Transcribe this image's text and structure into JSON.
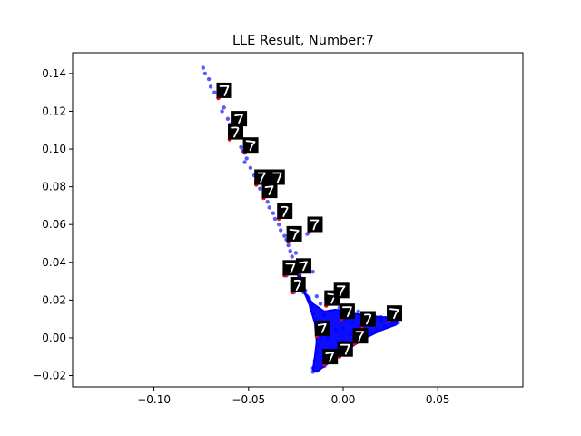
{
  "chart_data": {
    "type": "scatter",
    "title": "LLE Result, Number:7",
    "xlabel": "",
    "ylabel": "",
    "xlim": [
      -0.143,
      0.095
    ],
    "ylim": [
      -0.026,
      0.151
    ],
    "xticks": [
      -0.1,
      -0.05,
      0.0,
      0.05
    ],
    "xtick_labels": [
      "−0.10",
      "−0.05",
      "0.00",
      "0.05"
    ],
    "yticks": [
      -0.02,
      0.0,
      0.02,
      0.04,
      0.06,
      0.08,
      0.1,
      0.12,
      0.14
    ],
    "ytick_labels": [
      "−0.02",
      "0.00",
      "0.02",
      "0.04",
      "0.06",
      "0.08",
      "0.10",
      "0.12",
      "0.14"
    ],
    "grid": false,
    "point_color": "#0000ff",
    "highlight_color": "#ff0000",
    "points": [
      [
        -0.074,
        0.143
      ],
      [
        -0.073,
        0.14
      ],
      [
        -0.071,
        0.137
      ],
      [
        -0.07,
        0.133
      ],
      [
        -0.068,
        0.13
      ],
      [
        -0.066,
        0.127
      ],
      [
        -0.063,
        0.122
      ],
      [
        -0.064,
        0.12
      ],
      [
        -0.061,
        0.116
      ],
      [
        -0.06,
        0.113
      ],
      [
        -0.058,
        0.109
      ],
      [
        -0.057,
        0.107
      ],
      [
        -0.054,
        0.101
      ],
      [
        -0.053,
        0.099
      ],
      [
        -0.051,
        0.095
      ],
      [
        -0.052,
        0.093
      ],
      [
        -0.049,
        0.09
      ],
      [
        -0.047,
        0.086
      ],
      [
        -0.046,
        0.083
      ],
      [
        -0.044,
        0.079
      ],
      [
        -0.042,
        0.076
      ],
      [
        -0.04,
        0.072
      ],
      [
        -0.039,
        0.069
      ],
      [
        -0.037,
        0.066
      ],
      [
        -0.036,
        0.063
      ],
      [
        -0.034,
        0.06
      ],
      [
        -0.033,
        0.057
      ],
      [
        -0.031,
        0.054
      ],
      [
        -0.03,
        0.052
      ],
      [
        -0.029,
        0.049
      ],
      [
        -0.028,
        0.046
      ],
      [
        -0.027,
        0.043
      ],
      [
        -0.026,
        0.04
      ],
      [
        -0.025,
        0.038
      ],
      [
        -0.024,
        0.036
      ],
      [
        -0.023,
        0.033
      ],
      [
        -0.022,
        0.03
      ],
      [
        -0.021,
        0.028
      ],
      [
        -0.02,
        0.025
      ],
      [
        -0.019,
        0.022
      ],
      [
        -0.018,
        0.019
      ],
      [
        -0.017,
        0.016
      ],
      [
        -0.016,
        0.013
      ],
      [
        -0.015,
        0.01
      ],
      [
        -0.014,
        0.006
      ],
      [
        -0.013,
        0.003
      ],
      [
        -0.012,
        0.0
      ],
      [
        -0.013,
        -0.004
      ],
      [
        -0.014,
        -0.008
      ],
      [
        -0.015,
        -0.012
      ],
      [
        -0.016,
        -0.016
      ],
      [
        -0.016,
        -0.018
      ],
      [
        -0.018,
        0.06
      ],
      [
        -0.019,
        0.055
      ],
      [
        -0.025,
        0.045
      ],
      [
        -0.022,
        0.041
      ],
      [
        -0.019,
        0.038
      ],
      [
        -0.016,
        0.035
      ],
      [
        -0.03,
        0.033
      ],
      [
        -0.027,
        0.03
      ],
      [
        -0.024,
        0.027
      ],
      [
        -0.021,
        0.024
      ],
      [
        -0.018,
        0.021
      ],
      [
        -0.026,
        0.024
      ],
      [
        -0.01,
        0.012
      ],
      [
        -0.006,
        0.014
      ],
      [
        -0.002,
        0.016
      ],
      [
        0.003,
        0.015
      ],
      [
        0.008,
        0.014
      ],
      [
        0.012,
        0.013
      ],
      [
        0.016,
        0.012
      ],
      [
        0.02,
        0.011
      ],
      [
        0.024,
        0.01
      ],
      [
        0.027,
        0.009
      ],
      [
        0.029,
        0.008
      ],
      [
        0.026,
        0.007
      ],
      [
        0.022,
        0.006
      ],
      [
        0.018,
        0.004
      ],
      [
        0.014,
        0.002
      ],
      [
        0.01,
        0.0
      ],
      [
        0.006,
        -0.003
      ],
      [
        0.002,
        -0.006
      ],
      [
        -0.002,
        -0.009
      ],
      [
        -0.006,
        -0.012
      ],
      [
        -0.01,
        -0.015
      ],
      [
        -0.008,
        -0.01
      ],
      [
        -0.004,
        -0.006
      ],
      [
        0.0,
        -0.002
      ],
      [
        0.004,
        0.002
      ],
      [
        0.008,
        0.006
      ],
      [
        -0.004,
        0.004
      ],
      [
        -0.008,
        0.0
      ],
      [
        -0.011,
        0.008
      ],
      [
        -0.009,
        0.004
      ],
      [
        0.001,
        0.01
      ],
      [
        0.005,
        0.008
      ],
      [
        0.01,
        0.006
      ],
      [
        -0.003,
        -0.002
      ],
      [
        -0.006,
        -0.006
      ],
      [
        0.0,
        0.005
      ],
      [
        -0.012,
        0.018
      ],
      [
        -0.014,
        0.022
      ],
      [
        -0.009,
        0.021
      ],
      [
        -0.002,
        0.022
      ],
      [
        0.015,
        0.008
      ],
      [
        0.02,
        0.009
      ],
      [
        0.025,
        0.012
      ],
      [
        0.028,
        0.013
      ]
    ],
    "fill_region": [
      [
        -0.023,
        0.035
      ],
      [
        -0.021,
        0.025
      ],
      [
        -0.016,
        0.018
      ],
      [
        -0.01,
        0.014
      ],
      [
        -0.004,
        0.015
      ],
      [
        0.004,
        0.013
      ],
      [
        0.012,
        0.012
      ],
      [
        0.02,
        0.011
      ],
      [
        0.029,
        0.011
      ],
      [
        0.028,
        0.007
      ],
      [
        0.02,
        0.004
      ],
      [
        0.012,
        0.0
      ],
      [
        0.004,
        -0.005
      ],
      [
        -0.004,
        -0.011
      ],
      [
        -0.01,
        -0.015
      ],
      [
        -0.014,
        -0.018
      ],
      [
        -0.016,
        -0.017
      ],
      [
        -0.015,
        -0.01
      ],
      [
        -0.014,
        -0.002
      ],
      [
        -0.015,
        0.008
      ],
      [
        -0.018,
        0.018
      ],
      [
        -0.021,
        0.025
      ],
      [
        -0.024,
        0.033
      ]
    ],
    "highlighted_points": [
      [
        -0.066,
        0.127
      ],
      [
        -0.058,
        0.112
      ],
      [
        -0.06,
        0.105
      ],
      [
        -0.052,
        0.098
      ],
      [
        -0.046,
        0.081
      ],
      [
        -0.038,
        0.081
      ],
      [
        -0.042,
        0.074
      ],
      [
        -0.034,
        0.063
      ],
      [
        -0.029,
        0.051
      ],
      [
        -0.018,
        0.056
      ],
      [
        -0.031,
        0.033
      ],
      [
        -0.024,
        0.034
      ],
      [
        -0.027,
        0.024
      ],
      [
        -0.009,
        0.017
      ],
      [
        -0.004,
        0.021
      ],
      [
        -0.001,
        0.01
      ],
      [
        -0.014,
        0.001
      ],
      [
        0.01,
        0.006
      ],
      [
        0.024,
        0.009
      ],
      [
        0.006,
        -0.003
      ],
      [
        -0.002,
        -0.01
      ],
      [
        -0.01,
        -0.014
      ]
    ]
  }
}
